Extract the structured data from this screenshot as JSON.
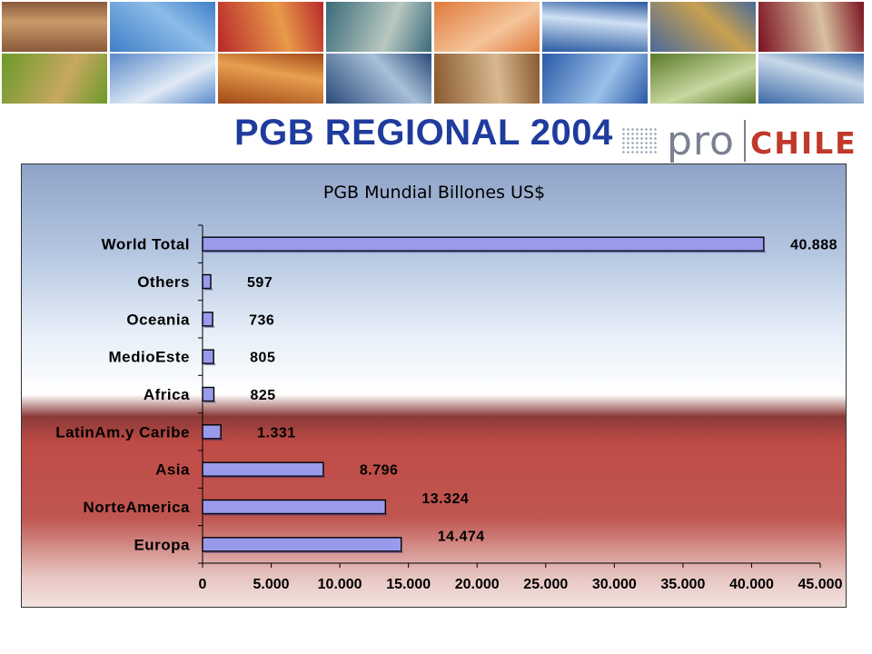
{
  "slide": {
    "title": "PGB REGIONAL 2004"
  },
  "logo": {
    "pro": "pro",
    "chile": "CHILE"
  },
  "banner": {
    "tiles": [
      {
        "icon": "desert-mountain-photo",
        "color_a": "#8a5a3c",
        "color_b": "#c89a6a"
      },
      {
        "icon": "sky-bird-photo",
        "color_a": "#3f7fc8",
        "color_b": "#8dbbe8"
      },
      {
        "icon": "apples-photo",
        "color_a": "#b8282a",
        "color_b": "#e89a4a"
      },
      {
        "icon": "office-worker-photo",
        "color_a": "#3a6a7a",
        "color_b": "#b8c8c0"
      },
      {
        "icon": "salmon-photo",
        "color_a": "#e07a3a",
        "color_b": "#f4c49a"
      },
      {
        "icon": "chart-paper-photo",
        "color_a": "#2a5aa0",
        "color_b": "#cfe0f4"
      },
      {
        "icon": "volcano-photo",
        "color_a": "#4a6a9a",
        "color_b": "#c8a050"
      },
      {
        "icon": "wine-glass-photo",
        "color_a": "#7a1020",
        "color_b": "#d8c0a0"
      },
      {
        "icon": "kiwi-photo",
        "color_a": "#6a9a2a",
        "color_b": "#c8a860"
      },
      {
        "icon": "code-screen-photo",
        "color_a": "#5a8ac8",
        "color_b": "#e0eaf6"
      },
      {
        "icon": "copper-mine-photo",
        "color_a": "#a04818",
        "color_b": "#e8a050"
      },
      {
        "icon": "mountain-peaks-photo",
        "color_a": "#2a4a7a",
        "color_b": "#a8c0d8"
      },
      {
        "icon": "seafood-photo",
        "color_a": "#8a5a30",
        "color_b": "#d8b890"
      },
      {
        "icon": "grid-tech-photo",
        "color_a": "#2a5aa8",
        "color_b": "#9ac0e8"
      },
      {
        "icon": "asparagus-photo",
        "color_a": "#5a7a2a",
        "color_b": "#c8d8a0"
      },
      {
        "icon": "city-skyline-photo",
        "color_a": "#3a6aa8",
        "color_b": "#c8d8e8"
      }
    ]
  },
  "chart_data": {
    "type": "bar",
    "orientation": "horizontal",
    "title": "PGB Mundial Billones US$",
    "categories": [
      "World Total",
      "Others",
      "Oceania",
      "MedioEste",
      "Africa",
      "LatinAm.y Caribe",
      "Asia",
      "NorteAmerica",
      "Europa"
    ],
    "values": [
      40888,
      597,
      736,
      805,
      825,
      1331,
      8796,
      13324,
      14474
    ],
    "value_labels": [
      "40.888",
      "597",
      "736",
      "805",
      "825",
      "1.331",
      "8.796",
      "13.324",
      "14.474"
    ],
    "x_ticks": [
      0,
      5000,
      10000,
      15000,
      20000,
      25000,
      30000,
      35000,
      40000,
      45000
    ],
    "x_tick_labels": [
      "0",
      "5.000",
      "10.000",
      "15.000",
      "20.000",
      "25.000",
      "30.000",
      "35.000",
      "40.000",
      "45.000"
    ],
    "xlim": [
      0,
      45000
    ],
    "xlabel": "",
    "ylabel": "",
    "grid": false,
    "legend": "none",
    "bar_color": "#9a9aec",
    "bar_edge_color": "#000000"
  }
}
